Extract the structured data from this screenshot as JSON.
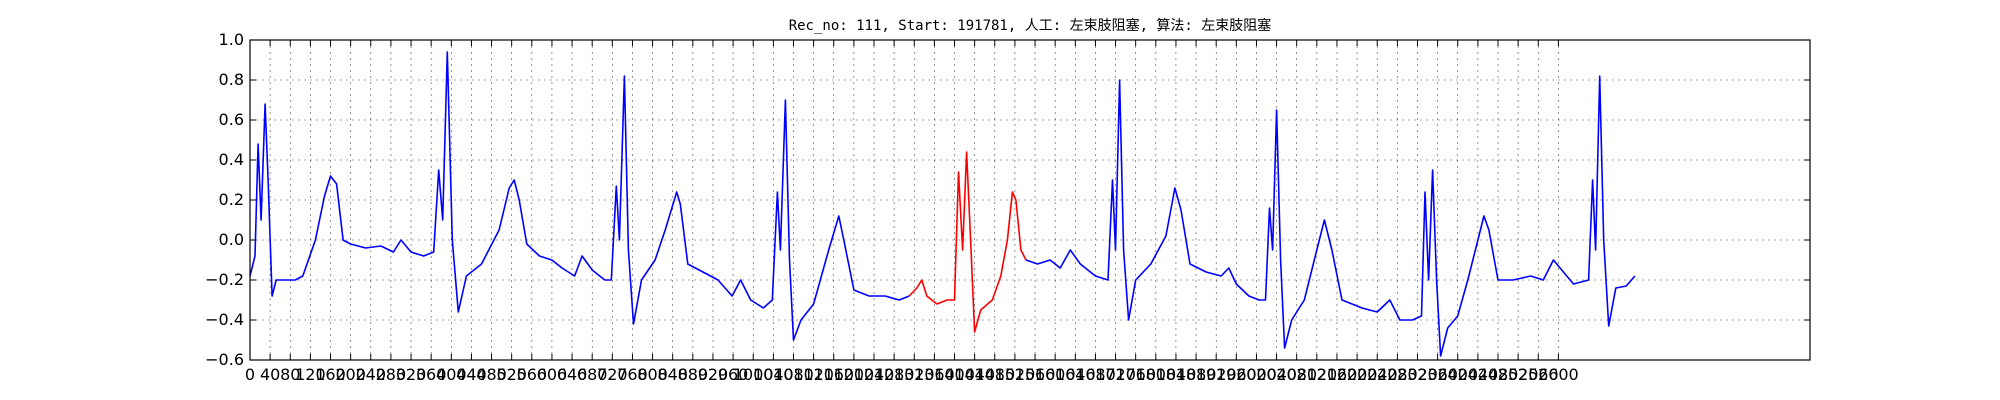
{
  "chart_data": {
    "type": "line",
    "title": "Rec_no: 111, Start: 191781, 人工: 左束肢阻塞, 算法: 左束肢阻塞",
    "xlabel": "",
    "ylabel": "",
    "xlim": [
      0,
      3100
    ],
    "ylim": [
      -0.6,
      1.0
    ],
    "yticks": [
      1.0,
      0.8,
      0.6,
      0.4,
      0.2,
      0.0,
      -0.2,
      -0.4,
      -0.6
    ],
    "ytick_labels": [
      "1.0",
      "0.8",
      "0.6",
      "0.4",
      "0.2",
      "0.0",
      "−0.2",
      "−0.4",
      "−0.6"
    ],
    "xticks": [
      0,
      40,
      80,
      120,
      160,
      200,
      240,
      280,
      320,
      360,
      400,
      440,
      480,
      520,
      560,
      600,
      640,
      680,
      720,
      760,
      800,
      840,
      880,
      920,
      960,
      1000,
      1040,
      1080,
      1120,
      1160,
      1200,
      1240,
      1280,
      1320,
      1360,
      1400,
      1440,
      1480,
      1520,
      1560,
      1600,
      1640,
      1680,
      1720,
      1760,
      1800,
      1840,
      1880,
      1920,
      1960,
      2000,
      2040,
      2080,
      2120,
      2160,
      2200,
      2240,
      2280,
      2320,
      2360,
      2400,
      2440,
      2480,
      2520,
      2560,
      2600
    ],
    "grid": true,
    "series": [
      {
        "color": "#0000ff",
        "segment": "before",
        "points": [
          [
            0,
            -0.18
          ],
          [
            10,
            -0.08
          ],
          [
            16,
            0.48
          ],
          [
            22,
            0.1
          ],
          [
            30,
            0.68
          ],
          [
            36,
            0.3
          ],
          [
            44,
            -0.28
          ],
          [
            52,
            -0.2
          ],
          [
            70,
            -0.2
          ],
          [
            90,
            -0.2
          ],
          [
            105,
            -0.18
          ],
          [
            130,
            0.0
          ],
          [
            148,
            0.22
          ],
          [
            160,
            0.32
          ],
          [
            172,
            0.28
          ],
          [
            185,
            0.0
          ],
          [
            200,
            -0.02
          ],
          [
            230,
            -0.04
          ],
          [
            260,
            -0.03
          ],
          [
            285,
            -0.06
          ],
          [
            300,
            0.0
          ],
          [
            320,
            -0.06
          ],
          [
            345,
            -0.08
          ],
          [
            365,
            -0.06
          ],
          [
            375,
            0.35
          ],
          [
            383,
            0.1
          ],
          [
            392,
            0.94
          ],
          [
            402,
            0.0
          ],
          [
            414,
            -0.36
          ],
          [
            430,
            -0.18
          ],
          [
            460,
            -0.12
          ],
          [
            495,
            0.05
          ],
          [
            515,
            0.26
          ],
          [
            525,
            0.3
          ],
          [
            535,
            0.2
          ],
          [
            550,
            -0.02
          ],
          [
            575,
            -0.08
          ],
          [
            600,
            -0.1
          ],
          [
            620,
            -0.14
          ],
          [
            645,
            -0.18
          ],
          [
            660,
            -0.08
          ],
          [
            680,
            -0.15
          ],
          [
            705,
            -0.2
          ],
          [
            718,
            -0.2
          ],
          [
            728,
            0.27
          ],
          [
            734,
            0.0
          ],
          [
            744,
            0.82
          ],
          [
            752,
            -0.05
          ],
          [
            762,
            -0.42
          ],
          [
            778,
            -0.2
          ],
          [
            805,
            -0.1
          ],
          [
            825,
            0.05
          ],
          [
            848,
            0.24
          ],
          [
            855,
            0.18
          ],
          [
            870,
            -0.12
          ],
          [
            900,
            -0.16
          ],
          [
            930,
            -0.2
          ],
          [
            958,
            -0.28
          ],
          [
            975,
            -0.2
          ],
          [
            995,
            -0.3
          ],
          [
            1020,
            -0.34
          ],
          [
            1038,
            -0.3
          ],
          [
            1048,
            0.24
          ],
          [
            1054,
            -0.05
          ],
          [
            1064,
            0.7
          ],
          [
            1072,
            -0.1
          ],
          [
            1080,
            -0.5
          ],
          [
            1095,
            -0.4
          ],
          [
            1120,
            -0.32
          ],
          [
            1150,
            -0.05
          ],
          [
            1170,
            0.12
          ],
          [
            1180,
            0.0
          ],
          [
            1200,
            -0.25
          ],
          [
            1230,
            -0.28
          ],
          [
            1262,
            -0.28
          ],
          [
            1290,
            -0.3
          ],
          [
            1310,
            -0.28
          ]
        ]
      },
      {
        "color": "#ff0000",
        "segment": "highlighted",
        "points": [
          [
            1310,
            -0.28
          ],
          [
            1325,
            -0.24
          ],
          [
            1335,
            -0.2
          ],
          [
            1345,
            -0.28
          ],
          [
            1365,
            -0.32
          ],
          [
            1385,
            -0.3
          ],
          [
            1400,
            -0.3
          ],
          [
            1408,
            0.34
          ],
          [
            1416,
            -0.05
          ],
          [
            1424,
            0.44
          ],
          [
            1432,
            0.0
          ],
          [
            1440,
            -0.46
          ],
          [
            1452,
            -0.35
          ],
          [
            1475,
            -0.3
          ],
          [
            1492,
            -0.18
          ],
          [
            1505,
            0.0
          ],
          [
            1515,
            0.24
          ],
          [
            1522,
            0.2
          ],
          [
            1532,
            -0.05
          ],
          [
            1542,
            -0.1
          ]
        ]
      },
      {
        "color": "#0000ff",
        "segment": "after",
        "points": [
          [
            1542,
            -0.1
          ],
          [
            1565,
            -0.12
          ],
          [
            1590,
            -0.1
          ],
          [
            1610,
            -0.14
          ],
          [
            1630,
            -0.05
          ],
          [
            1650,
            -0.12
          ],
          [
            1680,
            -0.18
          ],
          [
            1705,
            -0.2
          ],
          [
            1714,
            0.3
          ],
          [
            1720,
            -0.05
          ],
          [
            1728,
            0.8
          ],
          [
            1736,
            -0.05
          ],
          [
            1746,
            -0.4
          ],
          [
            1760,
            -0.2
          ],
          [
            1790,
            -0.12
          ],
          [
            1820,
            0.02
          ],
          [
            1838,
            0.26
          ],
          [
            1850,
            0.15
          ],
          [
            1868,
            -0.12
          ],
          [
            1900,
            -0.16
          ],
          [
            1930,
            -0.18
          ],
          [
            1945,
            -0.14
          ],
          [
            1960,
            -0.22
          ],
          [
            1985,
            -0.28
          ],
          [
            2005,
            -0.3
          ],
          [
            2018,
            -0.3
          ],
          [
            2026,
            0.16
          ],
          [
            2032,
            -0.05
          ],
          [
            2040,
            0.65
          ],
          [
            2048,
            -0.1
          ],
          [
            2056,
            -0.54
          ],
          [
            2070,
            -0.4
          ],
          [
            2095,
            -0.3
          ],
          [
            2120,
            -0.05
          ],
          [
            2135,
            0.1
          ],
          [
            2150,
            -0.05
          ],
          [
            2170,
            -0.3
          ],
          [
            2210,
            -0.34
          ],
          [
            2240,
            -0.36
          ],
          [
            2265,
            -0.3
          ],
          [
            2285,
            -0.4
          ],
          [
            2310,
            -0.4
          ],
          [
            2328,
            -0.38
          ],
          [
            2335,
            0.24
          ],
          [
            2342,
            -0.2
          ],
          [
            2350,
            0.35
          ],
          [
            2358,
            -0.2
          ],
          [
            2366,
            -0.58
          ],
          [
            2380,
            -0.44
          ],
          [
            2400,
            -0.38
          ],
          [
            2420,
            -0.2
          ],
          [
            2440,
            0.0
          ],
          [
            2452,
            0.12
          ],
          [
            2462,
            0.05
          ],
          [
            2480,
            -0.2
          ],
          [
            2510,
            -0.2
          ],
          [
            2545,
            -0.18
          ],
          [
            2570,
            -0.2
          ],
          [
            2590,
            -0.1
          ],
          [
            2610,
            -0.16
          ],
          [
            2630,
            -0.22
          ],
          [
            2660,
            -0.2
          ],
          [
            2668,
            0.3
          ],
          [
            2674,
            -0.05
          ],
          [
            2682,
            0.82
          ],
          [
            2690,
            0.0
          ],
          [
            2700,
            -0.43
          ],
          [
            2714,
            -0.24
          ],
          [
            2735,
            -0.23
          ],
          [
            2752,
            -0.18
          ]
        ]
      }
    ]
  }
}
